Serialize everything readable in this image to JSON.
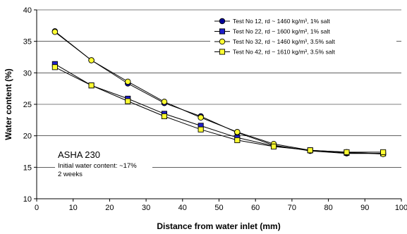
{
  "chart_data": {
    "type": "line",
    "xlabel": "Distance from water inlet (mm)",
    "ylabel": "Water content (%)",
    "xlim": [
      0,
      100
    ],
    "ylim": [
      10,
      40
    ],
    "xticks": [
      0,
      10,
      20,
      30,
      40,
      50,
      60,
      70,
      80,
      90,
      100
    ],
    "yticks": [
      10,
      15,
      20,
      25,
      30,
      35,
      40
    ],
    "grid": "horizontal",
    "legend_position": "top-right",
    "annotation": {
      "title": "ASHA 230",
      "lines": [
        "Initial water content: ~17%",
        "2 weeks"
      ]
    },
    "series": [
      {
        "name": "Test No 12, rd ~ 1460 kg/m³, 1% salt",
        "color": "#000099",
        "marker": "circle",
        "x": [
          5,
          15,
          25,
          35,
          45,
          55,
          65,
          75,
          85,
          95
        ],
        "values": [
          36.6,
          32.0,
          28.3,
          25.2,
          23.1,
          20.5,
          18.5,
          17.6,
          17.2,
          17.2
        ]
      },
      {
        "name": "Test No 22, rd ~ 1600 kg/m³, 1% salt",
        "color": "#1f1fcc",
        "marker": "square",
        "x": [
          5,
          15,
          25,
          35,
          45,
          55,
          65,
          75,
          85,
          95
        ],
        "values": [
          31.4,
          28.0,
          25.9,
          23.5,
          21.6,
          19.7,
          18.4,
          17.7,
          17.3,
          17.2
        ]
      },
      {
        "name": "Test No 32, rd ~ 1460 kg/m³, 3.5% salt",
        "color": "#ffff33",
        "marker": "circle",
        "x": [
          5,
          15,
          25,
          35,
          45,
          55,
          65,
          75,
          85,
          95
        ],
        "values": [
          36.5,
          32.0,
          28.6,
          25.4,
          22.9,
          20.6,
          18.7,
          17.7,
          17.4,
          17.1
        ]
      },
      {
        "name": "Test No 42, rd ~ 1610 kg/m³, 3.5% salt",
        "color": "#ffff33",
        "marker": "square",
        "x": [
          5,
          15,
          25,
          35,
          45,
          55,
          65,
          75,
          85,
          95
        ],
        "values": [
          30.9,
          28.0,
          25.5,
          23.1,
          21.0,
          19.3,
          18.3,
          17.7,
          17.4,
          17.4
        ]
      }
    ]
  }
}
